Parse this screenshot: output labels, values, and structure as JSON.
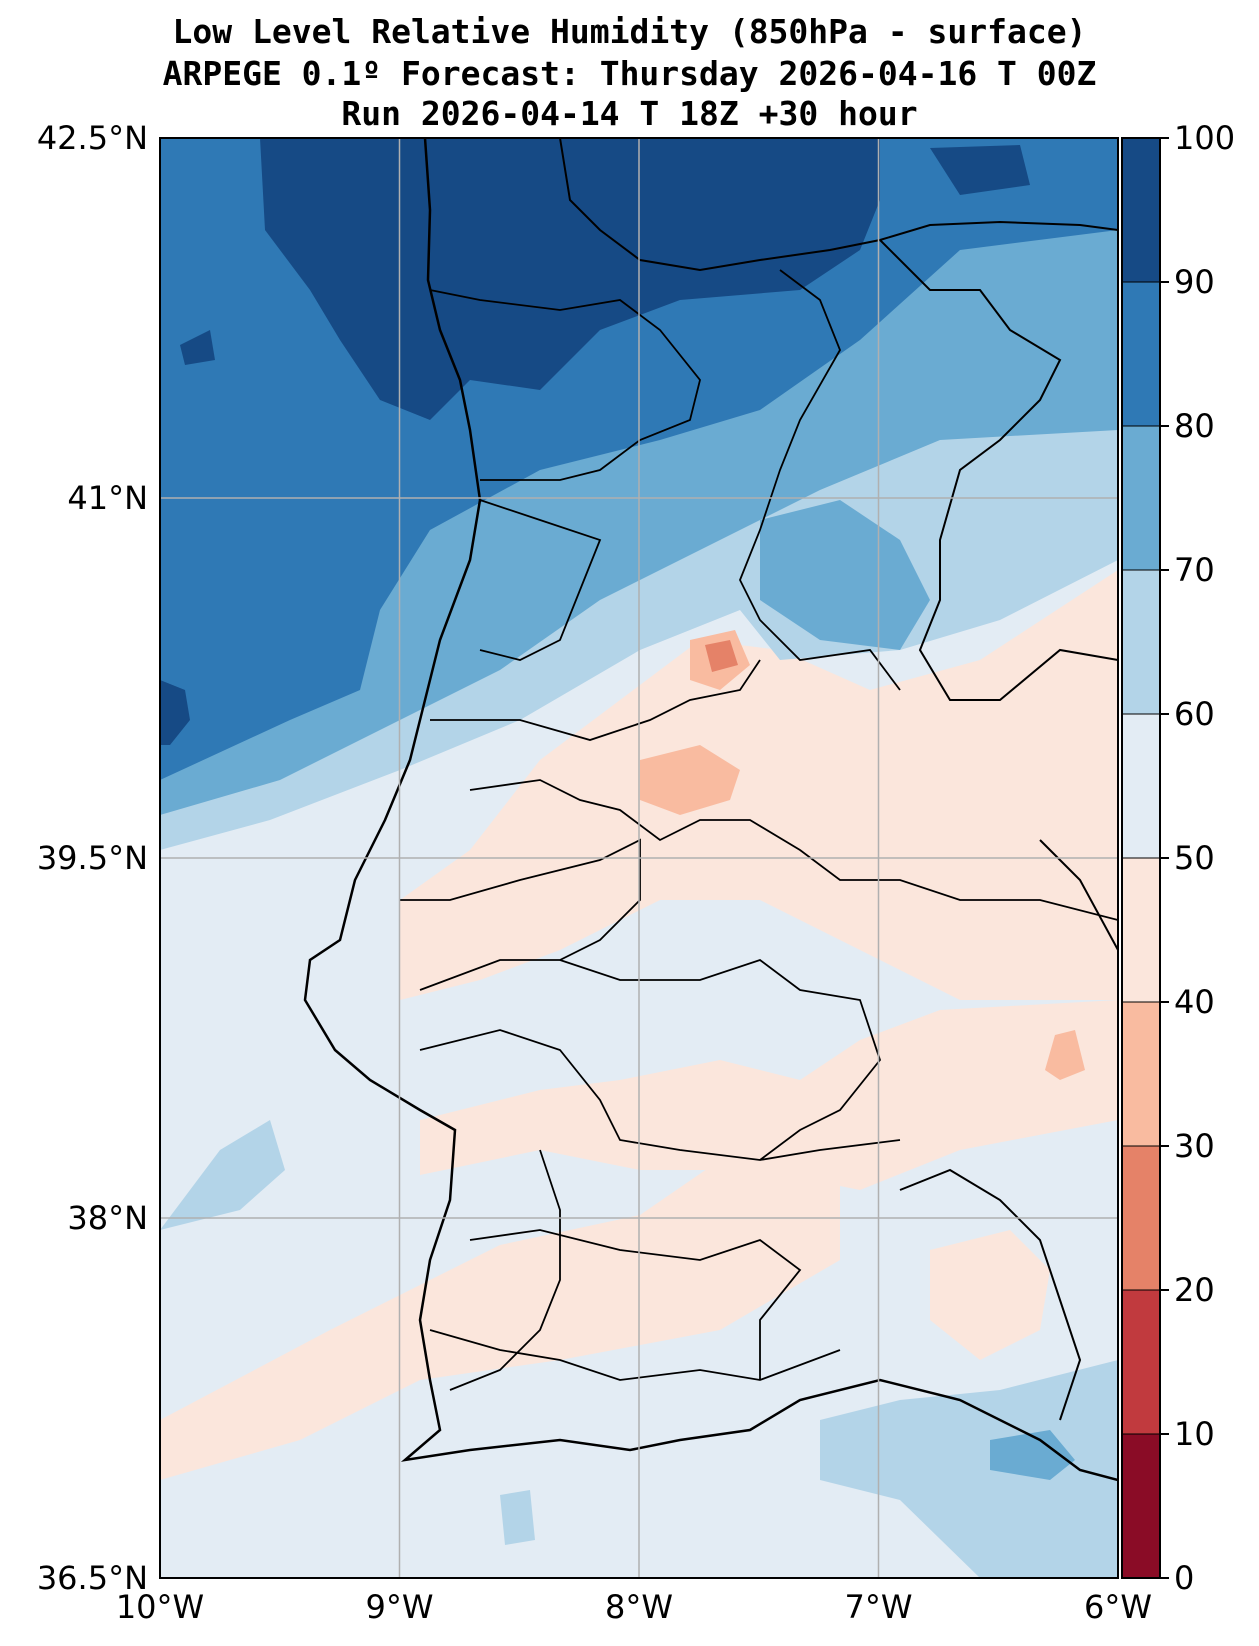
{
  "title": {
    "line1": "Low Level Relative Humidity (850hPa - surface)",
    "line2": "ARPEGE 0.1º Forecast: Thursday 2026-04-16 T 00Z",
    "line3": "Run 2026-04-14 T 18Z +30 hour"
  },
  "map": {
    "region": "Portugal",
    "lat_ticks": [
      "42.5°N",
      "41°N",
      "39.5°N",
      "38°N",
      "36.5°N"
    ],
    "lon_ticks": [
      "10°W",
      "9°W",
      "8°W",
      "7°W",
      "6°W"
    ],
    "lat_values": [
      42.5,
      41,
      39.5,
      38,
      36.5
    ],
    "lon_values": [
      -10,
      -9,
      -8,
      -7,
      -6
    ],
    "extent": {
      "lon_min": -10,
      "lon_max": -6,
      "lat_min": 36.5,
      "lat_max": 42.5
    },
    "grid": true
  },
  "colorbar": {
    "ticks": [
      "0",
      "10",
      "20",
      "30",
      "40",
      "50",
      "60",
      "70",
      "80",
      "90",
      "100"
    ],
    "levels": [
      0,
      10,
      20,
      30,
      40,
      50,
      60,
      70,
      80,
      90,
      100
    ],
    "colors": [
      "#8a0c26",
      "#c13a3e",
      "#e58268",
      "#f9bba0",
      "#fbe6dc",
      "#e3ecf4",
      "#b3d4e8",
      "#6aabd2",
      "#2f79b5",
      "#164a85"
    ]
  }
}
